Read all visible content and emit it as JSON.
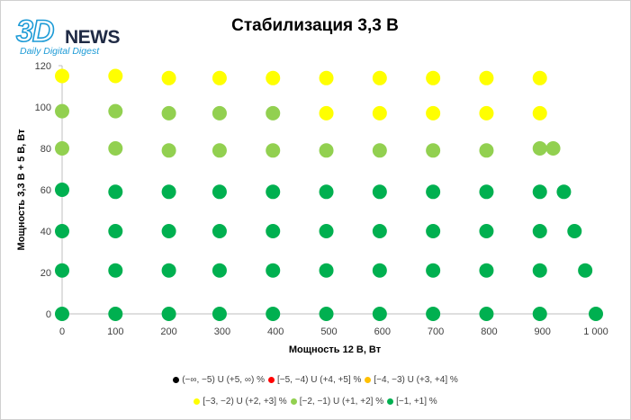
{
  "logo": {
    "mark": "3D",
    "wordmark": "NEWS",
    "tagline": "Daily Digital Digest"
  },
  "chart_data": {
    "type": "scatter",
    "title": "Стабилизация 3,3 В",
    "xlabel": "Мощность  12 В, Вт",
    "ylabel": "Мощность  3,3 В + 5 В, Вт",
    "xlim": [
      0,
      1000
    ],
    "ylim": [
      0,
      120
    ],
    "x_ticks": [
      0,
      100,
      200,
      300,
      400,
      500,
      600,
      700,
      800,
      900,
      1000
    ],
    "x_tick_labels": [
      "0",
      "100",
      "200",
      "300",
      "400",
      "500",
      "600",
      "700",
      "800",
      "900",
      "1 000"
    ],
    "y_ticks": [
      0,
      20,
      40,
      60,
      80,
      100,
      120
    ],
    "y_tick_labels": [
      "0",
      "20",
      "40",
      "60",
      "80",
      "100",
      "120"
    ],
    "grid": false,
    "legend_position": "bottom",
    "series": [
      {
        "name": "(−∞, −5) U (+5, ∞) %",
        "color": "#000000",
        "points": []
      },
      {
        "name": "[−5, −4) U (+4, +5] %",
        "color": "#ff0000",
        "points": []
      },
      {
        "name": "[−4, −3) U (+3, +4] %",
        "color": "#ffc000",
        "points": []
      },
      {
        "name": "[−3, −2) U (+2, +3] %",
        "color": "#ffff00",
        "points": [
          [
            0,
            115
          ],
          [
            100,
            115
          ],
          [
            200,
            114
          ],
          [
            295,
            114
          ],
          [
            395,
            114
          ],
          [
            495,
            114
          ],
          [
            595,
            114
          ],
          [
            695,
            114
          ],
          [
            795,
            114
          ],
          [
            895,
            114
          ],
          [
            495,
            97
          ],
          [
            595,
            97
          ],
          [
            695,
            97
          ],
          [
            795,
            97
          ],
          [
            895,
            97
          ]
        ]
      },
      {
        "name": "[−2, −1) U (+1, +2] %",
        "color": "#92d050",
        "points": [
          [
            0,
            98
          ],
          [
            100,
            98
          ],
          [
            200,
            97
          ],
          [
            295,
            97
          ],
          [
            395,
            97
          ],
          [
            0,
            80
          ],
          [
            100,
            80
          ],
          [
            200,
            79
          ],
          [
            295,
            79
          ],
          [
            395,
            79
          ],
          [
            495,
            79
          ],
          [
            595,
            79
          ],
          [
            695,
            79
          ],
          [
            795,
            79
          ],
          [
            895,
            80
          ],
          [
            920,
            80
          ]
        ]
      },
      {
        "name": "[−1, +1] %",
        "color": "#00b050",
        "points": [
          [
            0,
            60
          ],
          [
            100,
            59
          ],
          [
            200,
            59
          ],
          [
            295,
            59
          ],
          [
            395,
            59
          ],
          [
            495,
            59
          ],
          [
            595,
            59
          ],
          [
            695,
            59
          ],
          [
            795,
            59
          ],
          [
            895,
            59
          ],
          [
            940,
            59
          ],
          [
            0,
            40
          ],
          [
            100,
            40
          ],
          [
            200,
            40
          ],
          [
            295,
            40
          ],
          [
            395,
            40
          ],
          [
            495,
            40
          ],
          [
            595,
            40
          ],
          [
            695,
            40
          ],
          [
            795,
            40
          ],
          [
            895,
            40
          ],
          [
            960,
            40
          ],
          [
            0,
            21
          ],
          [
            100,
            21
          ],
          [
            200,
            21
          ],
          [
            295,
            21
          ],
          [
            395,
            21
          ],
          [
            495,
            21
          ],
          [
            595,
            21
          ],
          [
            695,
            21
          ],
          [
            795,
            21
          ],
          [
            895,
            21
          ],
          [
            980,
            21
          ],
          [
            0,
            0
          ],
          [
            100,
            0
          ],
          [
            200,
            0
          ],
          [
            295,
            0
          ],
          [
            395,
            0
          ],
          [
            495,
            0
          ],
          [
            595,
            0
          ],
          [
            695,
            0
          ],
          [
            795,
            0
          ],
          [
            895,
            0
          ],
          [
            1000,
            0
          ]
        ]
      }
    ]
  }
}
